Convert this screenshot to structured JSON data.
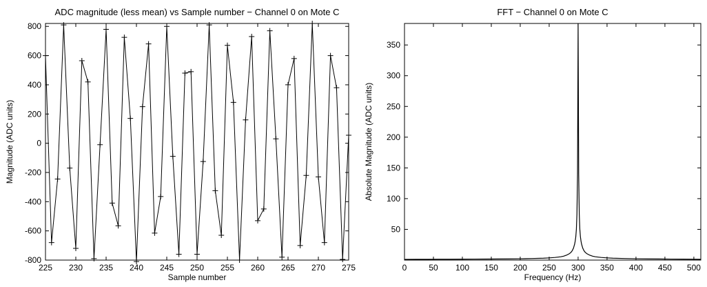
{
  "chart_data": [
    {
      "type": "line",
      "title": "ADC magnitude (less mean) vs Sample number − Channel 0 on Mote C",
      "xlabel": "Sample number",
      "ylabel": "Magnitude (ADC units)",
      "xlim": [
        225,
        275
      ],
      "ylim": [
        -800,
        820
      ],
      "xticks": [
        225,
        230,
        235,
        240,
        245,
        250,
        255,
        260,
        265,
        270,
        275
      ],
      "yticks": [
        -800,
        -600,
        -400,
        -200,
        0,
        200,
        400,
        600,
        800
      ],
      "marker": "+",
      "color": "#000000",
      "x": [
        225,
        226,
        227,
        228,
        229,
        230,
        231,
        232,
        233,
        234,
        235,
        236,
        237,
        238,
        239,
        240,
        241,
        242,
        243,
        244,
        245,
        246,
        247,
        248,
        249,
        250,
        251,
        252,
        253,
        254,
        255,
        256,
        257,
        258,
        259,
        260,
        261,
        262,
        263,
        264,
        265,
        266,
        267,
        268,
        269,
        270,
        271,
        272,
        273,
        274,
        275
      ],
      "y": [
        600,
        -680,
        -245,
        810,
        -170,
        -720,
        565,
        420,
        -790,
        -10,
        780,
        -410,
        -565,
        725,
        170,
        -810,
        250,
        680,
        -615,
        -365,
        800,
        -90,
        -760,
        480,
        490,
        -760,
        -125,
        810,
        -325,
        -630,
        670,
        280,
        -800,
        160,
        730,
        -530,
        -450,
        770,
        30,
        -780,
        400,
        580,
        -700,
        -220,
        820,
        -230,
        -680,
        600,
        380,
        -795,
        55
      ]
    },
    {
      "type": "line",
      "title": "FFT − Channel 0 on Mote C",
      "xlabel": "Frequency (Hz)",
      "ylabel": "Absolute Magnitude (ADC units)",
      "xlim": [
        0,
        512
      ],
      "ylim": [
        0,
        385
      ],
      "xticks": [
        0,
        50,
        100,
        150,
        200,
        250,
        300,
        350,
        400,
        450,
        500
      ],
      "yticks": [
        50,
        100,
        150,
        200,
        250,
        300,
        350
      ],
      "color": "#000000",
      "x": [
        0,
        20,
        40,
        60,
        80,
        100,
        120,
        140,
        160,
        180,
        200,
        220,
        240,
        250,
        260,
        270,
        275,
        280,
        285,
        288,
        290,
        292,
        294,
        295,
        296,
        297,
        298,
        299,
        300,
        301,
        302,
        303,
        304,
        305,
        306,
        308,
        310,
        312,
        315,
        320,
        325,
        330,
        340,
        350,
        360,
        380,
        400,
        420,
        440,
        460,
        480,
        500,
        512
      ],
      "y": [
        1.2,
        1.3,
        1.3,
        1.4,
        1.4,
        1.5,
        1.6,
        1.7,
        1.8,
        2.0,
        2.2,
        2.6,
        3.1,
        3.6,
        4.3,
        5.4,
        6.4,
        8.0,
        10.5,
        13.0,
        15.5,
        19.5,
        26,
        31,
        38,
        50,
        75,
        140,
        385,
        140,
        75,
        50,
        38,
        31,
        26,
        19.5,
        15.5,
        13.0,
        10.5,
        8.0,
        6.4,
        5.4,
        4.3,
        3.6,
        3.1,
        2.6,
        2.2,
        2.0,
        1.8,
        1.6,
        1.5,
        1.4,
        1.3
      ]
    }
  ]
}
